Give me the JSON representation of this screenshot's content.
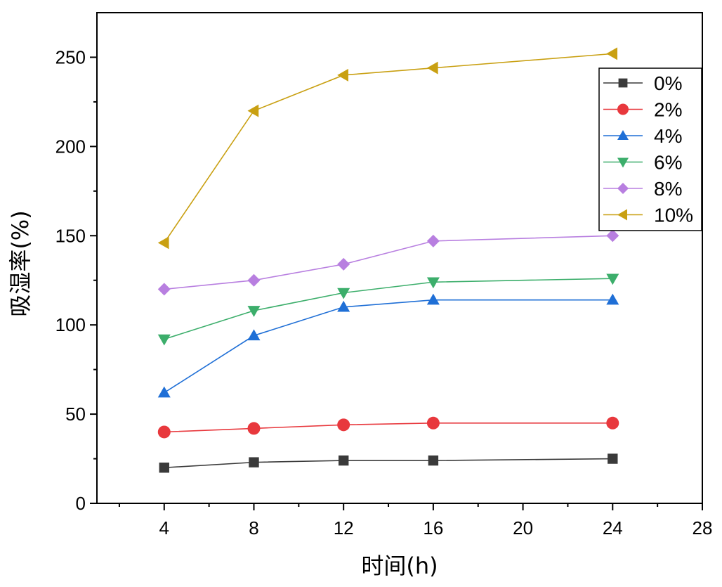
{
  "chart_data": {
    "type": "line",
    "title": "",
    "xlabel": "时间(h)",
    "ylabel": "吸湿率(%)",
    "xlim": [
      1,
      28
    ],
    "ylim": [
      0,
      275
    ],
    "xticks": [
      4,
      8,
      12,
      16,
      20,
      24,
      28
    ],
    "yticks": [
      0,
      50,
      100,
      150,
      200,
      250
    ],
    "x": [
      4,
      8,
      12,
      16,
      24
    ],
    "grid": false,
    "legend_position": "top-right",
    "series": [
      {
        "name": "0%",
        "color": "#3a3a3a",
        "marker": "square",
        "values": [
          20,
          23,
          24,
          24,
          25
        ]
      },
      {
        "name": "2%",
        "color": "#e8383d",
        "marker": "circle",
        "values": [
          40,
          42,
          44,
          45,
          45
        ]
      },
      {
        "name": "4%",
        "color": "#1f6fd6",
        "marker": "triangle-up",
        "values": [
          62,
          94,
          110,
          114,
          114
        ]
      },
      {
        "name": "6%",
        "color": "#3cae6b",
        "marker": "triangle-down",
        "values": [
          92,
          108,
          118,
          124,
          126
        ]
      },
      {
        "name": "8%",
        "color": "#b87fe0",
        "marker": "diamond",
        "values": [
          120,
          125,
          134,
          147,
          150
        ]
      },
      {
        "name": "10%",
        "color": "#c9a012",
        "marker": "triangle-left",
        "values": [
          146,
          220,
          240,
          244,
          252
        ]
      }
    ]
  }
}
